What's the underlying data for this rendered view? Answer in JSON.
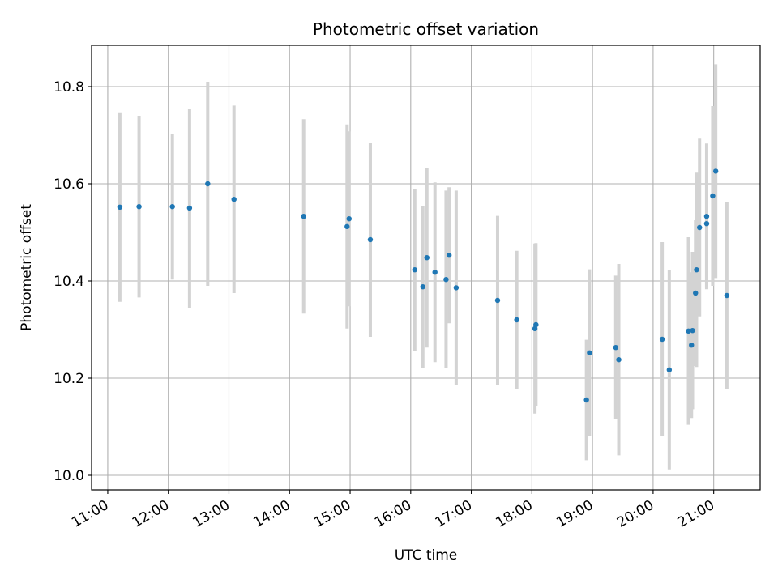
{
  "chart_data": {
    "type": "scatter",
    "title": "Photometric offset variation",
    "xlabel": "UTC time",
    "ylabel": "Photometric offset",
    "xlim": [
      "10:44",
      "21:46"
    ],
    "ylim": [
      9.97,
      10.885
    ],
    "grid": true,
    "x_ticks": [
      "11:00",
      "12:00",
      "13:00",
      "14:00",
      "15:00",
      "16:00",
      "17:00",
      "18:00",
      "19:00",
      "20:00",
      "21:00"
    ],
    "y_ticks": [
      10.0,
      10.2,
      10.4,
      10.6,
      10.8
    ],
    "y_tick_labels": [
      "10.0",
      "10.2",
      "10.4",
      "10.6",
      "10.8"
    ],
    "colors": {
      "marker": "#1f77b4",
      "errorbar": "#d3d3d3",
      "grid": "#b0b0b0"
    },
    "series": [
      {
        "points": [
          {
            "x": "11:12",
            "y": 10.552,
            "yerr": 0.195
          },
          {
            "x": "11:31",
            "y": 10.553,
            "yerr": 0.187
          },
          {
            "x": "12:04",
            "y": 10.553,
            "yerr": 0.15
          },
          {
            "x": "12:21",
            "y": 10.55,
            "yerr": 0.205
          },
          {
            "x": "12:39",
            "y": 10.6,
            "yerr": 0.21
          },
          {
            "x": "13:05",
            "y": 10.568,
            "yerr": 0.193
          },
          {
            "x": "14:14",
            "y": 10.533,
            "yerr": 0.2
          },
          {
            "x": "14:57",
            "y": 10.512,
            "yerr": 0.21
          },
          {
            "x": "14:59",
            "y": 10.528,
            "yerr": 0.18
          },
          {
            "x": "15:20",
            "y": 10.485,
            "yerr": 0.2
          },
          {
            "x": "16:04",
            "y": 10.423,
            "yerr": 0.167
          },
          {
            "x": "16:12",
            "y": 10.388,
            "yerr": 0.167
          },
          {
            "x": "16:16",
            "y": 10.448,
            "yerr": 0.185
          },
          {
            "x": "16:24",
            "y": 10.418,
            "yerr": 0.185
          },
          {
            "x": "16:35",
            "y": 10.403,
            "yerr": 0.183
          },
          {
            "x": "16:38",
            "y": 10.453,
            "yerr": 0.14
          },
          {
            "x": "16:45",
            "y": 10.386,
            "yerr": 0.2
          },
          {
            "x": "17:26",
            "y": 10.36,
            "yerr": 0.174
          },
          {
            "x": "17:45",
            "y": 10.32,
            "yerr": 0.142
          },
          {
            "x": "18:03",
            "y": 10.302,
            "yerr": 0.175
          },
          {
            "x": "18:04",
            "y": 10.31,
            "yerr": 0.168
          },
          {
            "x": "18:54",
            "y": 10.155,
            "yerr": 0.124
          },
          {
            "x": "18:57",
            "y": 10.252,
            "yerr": 0.172
          },
          {
            "x": "19:23",
            "y": 10.263,
            "yerr": 0.148
          },
          {
            "x": "19:26",
            "y": 10.238,
            "yerr": 0.197
          },
          {
            "x": "20:09",
            "y": 10.28,
            "yerr": 0.2
          },
          {
            "x": "20:16",
            "y": 10.217,
            "yerr": 0.205
          },
          {
            "x": "20:35",
            "y": 10.297,
            "yerr": 0.193
          },
          {
            "x": "20:38",
            "y": 10.268,
            "yerr": 0.15
          },
          {
            "x": "20:39",
            "y": 10.298,
            "yerr": 0.162
          },
          {
            "x": "20:42",
            "y": 10.375,
            "yerr": 0.15
          },
          {
            "x": "20:43",
            "y": 10.423,
            "yerr": 0.2
          },
          {
            "x": "20:46",
            "y": 10.51,
            "yerr": 0.183
          },
          {
            "x": "20:53",
            "y": 10.533,
            "yerr": 0.15
          },
          {
            "x": "20:53",
            "y": 10.518,
            "yerr": 0.132
          },
          {
            "x": "20:59",
            "y": 10.575,
            "yerr": 0.185
          },
          {
            "x": "21:02",
            "y": 10.626,
            "yerr": 0.22
          },
          {
            "x": "21:13",
            "y": 10.37,
            "yerr": 0.193
          }
        ]
      }
    ]
  }
}
